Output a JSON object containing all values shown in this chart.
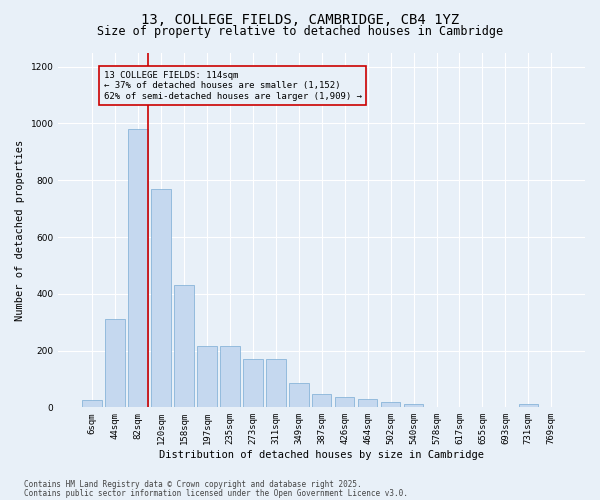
{
  "title_line1": "13, COLLEGE FIELDS, CAMBRIDGE, CB4 1YZ",
  "title_line2": "Size of property relative to detached houses in Cambridge",
  "xlabel": "Distribution of detached houses by size in Cambridge",
  "ylabel": "Number of detached properties",
  "categories": [
    "6sqm",
    "44sqm",
    "82sqm",
    "120sqm",
    "158sqm",
    "197sqm",
    "235sqm",
    "273sqm",
    "311sqm",
    "349sqm",
    "387sqm",
    "426sqm",
    "464sqm",
    "502sqm",
    "540sqm",
    "578sqm",
    "617sqm",
    "655sqm",
    "693sqm",
    "731sqm",
    "769sqm"
  ],
  "values": [
    25,
    310,
    980,
    770,
    430,
    215,
    215,
    170,
    170,
    85,
    48,
    35,
    30,
    20,
    10,
    0,
    0,
    0,
    0,
    10,
    0
  ],
  "bar_color": "#c5d8ef",
  "bar_edge_color": "#7aabd4",
  "bg_color": "#e8f0f8",
  "grid_color": "#ffffff",
  "vline_color": "#cc0000",
  "vline_x_index": 2,
  "annotation_line1": "13 COLLEGE FIELDS: 114sqm",
  "annotation_line2": "← 37% of detached houses are smaller (1,152)",
  "annotation_line3": "62% of semi-detached houses are larger (1,909) →",
  "annotation_box_edge_color": "#cc0000",
  "ylim": [
    0,
    1250
  ],
  "yticks": [
    0,
    200,
    400,
    600,
    800,
    1000,
    1200
  ],
  "footer_line1": "Contains HM Land Registry data © Crown copyright and database right 2025.",
  "footer_line2": "Contains public sector information licensed under the Open Government Licence v3.0.",
  "title1_fontsize": 10,
  "title2_fontsize": 8.5,
  "ylabel_fontsize": 7.5,
  "xlabel_fontsize": 7.5,
  "tick_fontsize": 6.5,
  "annotation_fontsize": 6.5,
  "footer_fontsize": 5.5
}
